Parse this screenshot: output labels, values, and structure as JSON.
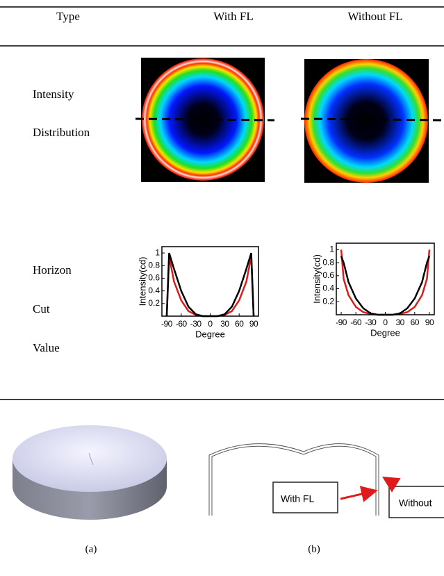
{
  "table": {
    "header": [
      "Type",
      "With FL",
      "Without FL"
    ],
    "rows": [
      {
        "label": [
          "Intensity",
          "Distribution"
        ]
      },
      {
        "label": [
          "Horizon",
          "Cut",
          "Value"
        ]
      }
    ]
  },
  "chart_data": [
    {
      "type": "line",
      "xlabel": "Degree",
      "ylabel": "Intensity(cd)",
      "x": [
        -90,
        -85,
        -75,
        -60,
        -45,
        -30,
        -15,
        0,
        15,
        30,
        45,
        60,
        75,
        85,
        90
      ],
      "series": [
        {
          "color": "#e0191b",
          "values": [
            0,
            0.95,
            0.55,
            0.25,
            0.08,
            0.02,
            0,
            0,
            0,
            0.02,
            0.08,
            0.25,
            0.55,
            0.95,
            0
          ]
        },
        {
          "color": "#000000",
          "values": [
            0,
            1,
            0.75,
            0.4,
            0.15,
            0.03,
            0,
            0,
            0,
            0.03,
            0.15,
            0.4,
            0.75,
            1,
            0
          ]
        }
      ],
      "xlim": [
        -100,
        100
      ],
      "ylim": [
        0,
        1.1
      ],
      "xticks": [
        -90,
        -60,
        -30,
        0,
        30,
        60,
        90
      ],
      "yticks": [
        0.2,
        0.4,
        0.6,
        0.8,
        1
      ]
    },
    {
      "type": "line",
      "xlabel": "Degree",
      "ylabel": "Intensity(cd)",
      "x": [
        -90,
        -85,
        -75,
        -60,
        -45,
        -30,
        -15,
        0,
        15,
        30,
        45,
        60,
        75,
        85,
        90
      ],
      "series": [
        {
          "color": "#e0191b",
          "values": [
            1,
            0.55,
            0.3,
            0.12,
            0.04,
            0.01,
            0,
            0,
            0,
            0.01,
            0.04,
            0.12,
            0.3,
            0.55,
            1
          ]
        },
        {
          "color": "#000000",
          "values": [
            0.9,
            0.8,
            0.5,
            0.25,
            0.1,
            0.02,
            0,
            0,
            0,
            0.02,
            0.1,
            0.25,
            0.5,
            0.8,
            0.9
          ]
        }
      ],
      "xlim": [
        -100,
        100
      ],
      "ylim": [
        0,
        1.1
      ],
      "xticks": [
        -90,
        -60,
        -30,
        0,
        30,
        60,
        90
      ],
      "yticks": [
        0.2,
        0.4,
        0.6,
        0.8,
        1
      ]
    }
  ],
  "figure": {
    "captions": [
      "(a)",
      "(b)"
    ],
    "diagram_labels": [
      "With FL",
      "Without"
    ]
  }
}
